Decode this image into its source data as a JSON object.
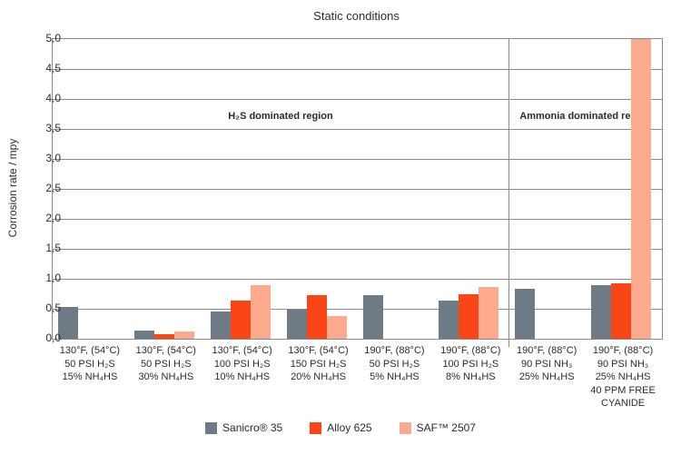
{
  "chart_data": {
    "type": "bar",
    "title": "Static conditions",
    "ylabel": "Corrosion rate / mpy",
    "ylim": [
      0,
      5
    ],
    "ytick_step": 0.5,
    "ytick_labels": [
      "0,0",
      "0,5",
      "1,0",
      "1,5",
      "2,0",
      "2,5",
      "3,0",
      "3,5",
      "4,0",
      "4,5",
      "5,0"
    ],
    "decimal_style": "comma",
    "grid": true,
    "legend_position": "bottom",
    "regions": [
      {
        "label": "H₂S dominated region",
        "groups": 6
      },
      {
        "label": "Ammonia dominated region",
        "groups": 2
      }
    ],
    "categories": [
      [
        "130°F, (54°C)",
        "50 PSI H₂S",
        "15% NH₄HS"
      ],
      [
        "130°F, (54°C)",
        "50 PSI H₂S",
        "30% NH₄HS"
      ],
      [
        "130°F, (54°C)",
        "100 PSI H₂S",
        "10% NH₄HS"
      ],
      [
        "130°F, (54°C)",
        "150 PSI H₂S",
        "20% NH₄HS"
      ],
      [
        "190°F, (88°C)",
        "50 PSI H₂S",
        "5% NH₄HS"
      ],
      [
        "190°F, (88°C)",
        "100 PSI H₂S",
        "8% NH₄HS"
      ],
      [
        "190°F, (88°C)",
        "90 PSI NH₃",
        "25% NH₄HS"
      ],
      [
        "190°F, (88°C)",
        "90 PSI NH₃",
        "25% NH₄HS",
        "40 PPM FREE",
        "CYANIDE"
      ]
    ],
    "series": [
      {
        "name": "Sanicro® 35",
        "color": "#6e7b85",
        "values": [
          0.53,
          0.13,
          0.45,
          0.48,
          0.72,
          0.63,
          0.84,
          0.9
        ]
      },
      {
        "name": "Alloy 625",
        "color": "#fa4616",
        "values": [
          null,
          0.07,
          0.63,
          0.72,
          null,
          0.75,
          null,
          0.92
        ]
      },
      {
        "name": "SAF™ 2507",
        "color": "#fbaa8e",
        "values": [
          null,
          0.12,
          0.9,
          0.38,
          null,
          0.86,
          null,
          5.0
        ]
      }
    ],
    "notes": "Last-group SAF™ 2507 bar reaches the chart top (≥5.0 mpy, clipped at axis max)"
  }
}
